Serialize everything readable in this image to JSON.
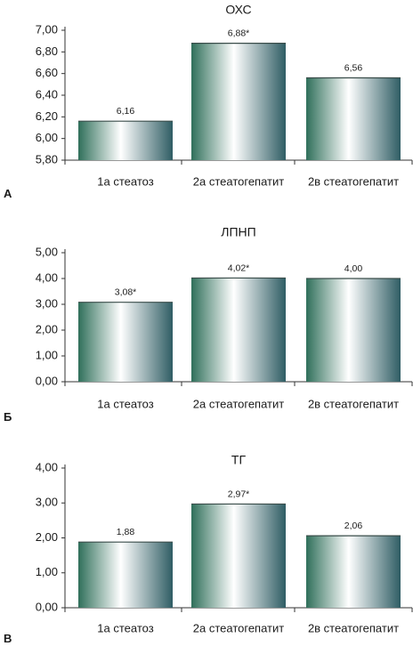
{
  "chart_data": [
    {
      "type": "bar",
      "panel_label": "А",
      "title": "ОХС",
      "categories": [
        "1а стеатоз",
        "2а стеатогепатит",
        "2в стеатогепатит"
      ],
      "values": [
        6.16,
        6.88,
        6.56
      ],
      "value_labels": [
        "6,16",
        "6,88*",
        "6,56"
      ],
      "yticks": [
        "5,80",
        "6,00",
        "6,20",
        "6,40",
        "6,60",
        "6,80",
        "7,00"
      ],
      "ylim": [
        5.8,
        7.0
      ]
    },
    {
      "type": "bar",
      "panel_label": "Б",
      "title": "ЛПНП",
      "categories": [
        "1а стеатоз",
        "2а стеатогепатит",
        "2в стеатогепатит"
      ],
      "values": [
        3.08,
        4.02,
        4.0
      ],
      "value_labels": [
        "3,08*",
        "4,02*",
        "4,00"
      ],
      "yticks": [
        "0,00",
        "1,00",
        "2,00",
        "3,00",
        "4,00",
        "5,00"
      ],
      "ylim": [
        0,
        5
      ]
    },
    {
      "type": "bar",
      "panel_label": "В",
      "title": "ТГ",
      "categories": [
        "1а стеатоз",
        "2а стеатогепатит",
        "2в стеатогепатит"
      ],
      "values": [
        1.88,
        2.97,
        2.06
      ],
      "value_labels": [
        "1,88",
        "2,97*",
        "2,06"
      ],
      "yticks": [
        "0,00",
        "1,00",
        "2,00",
        "3,00",
        "4,00"
      ],
      "ylim": [
        0,
        4
      ]
    }
  ],
  "colors": {
    "bar_dark": "#2f6f5a",
    "bar_light": "#ffffff",
    "bar_right": "#2f5d64",
    "axis": "#333333"
  }
}
